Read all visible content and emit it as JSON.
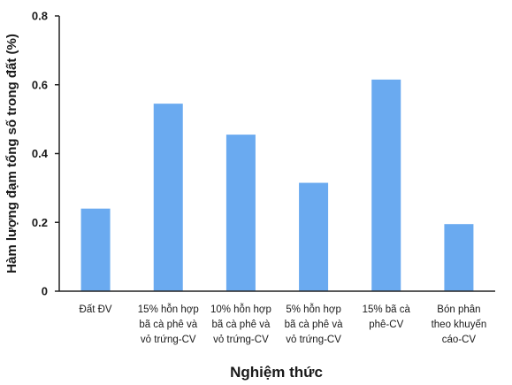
{
  "chart_data": {
    "type": "bar",
    "categories": [
      [
        "Đất ĐV"
      ],
      [
        "15% hỗn hợp",
        "bã cà phê và",
        "vỏ trứng-CV"
      ],
      [
        "10% hỗn hợp",
        "bã cà phê và",
        "vỏ trứng-CV"
      ],
      [
        "5% hỗn hợp",
        "bã cà phê và",
        "vỏ trứng-CV"
      ],
      [
        "15% bã cà",
        "phê-CV"
      ],
      [
        "Bón phân",
        "theo khuyến",
        "cáo-CV"
      ]
    ],
    "values": [
      0.24,
      0.545,
      0.455,
      0.315,
      0.615,
      0.195
    ],
    "xlabel": "Nghiệm thức",
    "ylabel": "Hàm lượng đạm tổng số trong đất (%)",
    "ylim": [
      0,
      0.8
    ],
    "yticks": [
      0,
      0.2,
      0.4,
      0.6,
      0.8
    ],
    "ytick_labels": [
      "0",
      "0.2",
      "0.4",
      "0.6",
      "0.8"
    ],
    "bar_color": "#6aaaf0",
    "grid": false,
    "legend": "none"
  }
}
